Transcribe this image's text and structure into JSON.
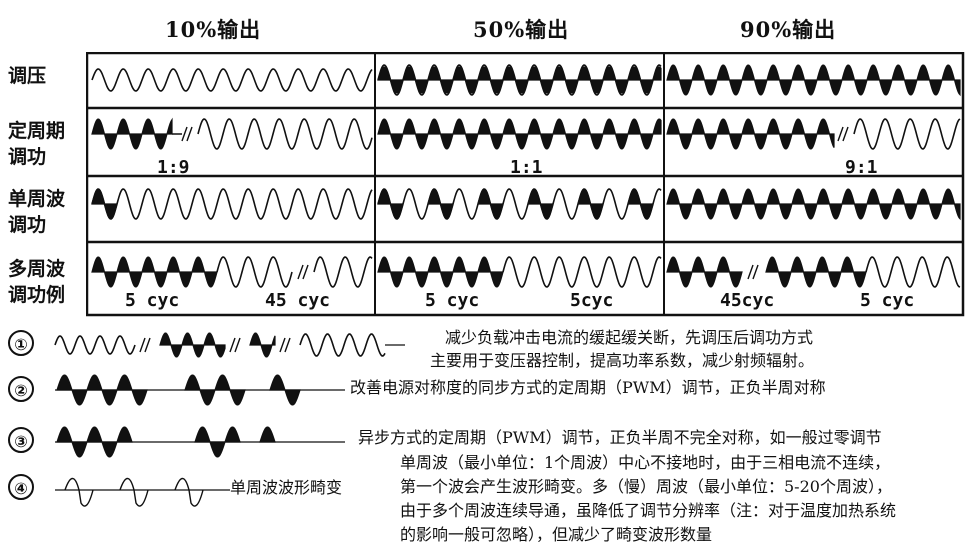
{
  "headers": {
    "h10": "10%输出",
    "h50": "50%输出",
    "h90": "90%输出"
  },
  "rows": {
    "r1": "调压",
    "r2a": "定周期",
    "r2b": "调功",
    "r3a": "单周波",
    "r3b": "调功",
    "r4a": "多周波",
    "r4b": "调功例"
  },
  "ratios": {
    "a": "1:9",
    "b": "1:1",
    "c": "9:1",
    "d": "5 cyc",
    "e": "45 cyc",
    "f": "5 cyc",
    "g": "5cyc",
    "h": "45cyc",
    "i": "5 cyc"
  },
  "legend": {
    "n1": "①",
    "n2": "②",
    "n3": "③",
    "n4": "④",
    "t1a": "减少负载冲击电流的缓起缓关断，先调压后调功方式",
    "t1b": "主要用于变压器控制，提高功率系数，减少射频辐射。",
    "t2": "改善电源对称度的同步方式的定周期（PWM）调节，正负半周对称",
    "t3": "异步方式的定周期（PWM）调节，正负半周不完全对称，如一般过零调节",
    "t4": "单周波波形畸变",
    "p1": "单周波（最小单位：1个周波）中心不接地时，由于三相电流不连续，",
    "p2": "第一个波会产生波形畸变。多（慢）周波（最小单位：5-20个周波），",
    "p3": "由于多个周波连续导通，虽降低了调节分辨率（注：对于温度加热系统",
    "p4": "的影响一般可忽略），但减少了畸变波形数量"
  },
  "colors": {
    "ink": "#111111",
    "grid": "#111111"
  },
  "icons": {
    "break": "double-slash-break-icon"
  }
}
